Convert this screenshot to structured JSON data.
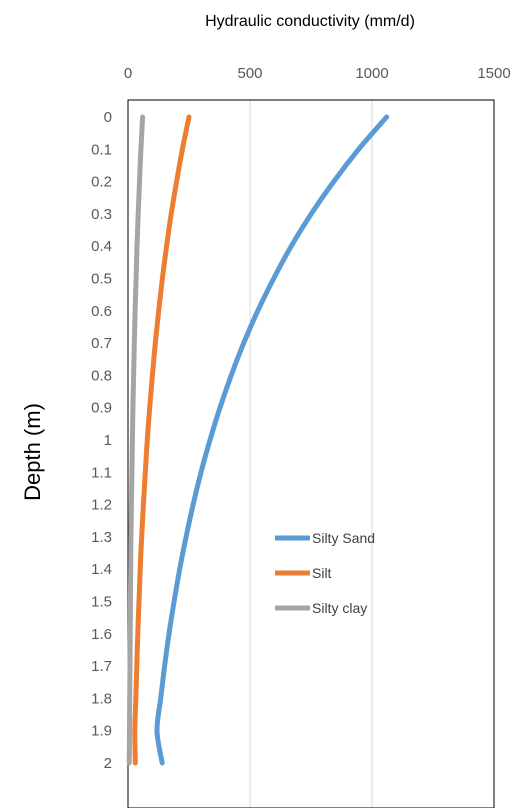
{
  "chart_data": {
    "type": "line",
    "title": "",
    "xlabel": "Hydraulic conductivity (mm/d)",
    "ylabel": "Depth (m)",
    "xlim": [
      0,
      1500
    ],
    "ylim": [
      0,
      2
    ],
    "x_axis_position": "top",
    "y_axis_reversed": true,
    "x_ticks": [
      "0",
      "500",
      "1000",
      "1500"
    ],
    "y_ticks": [
      "0",
      "0.1",
      "0.2",
      "0.3",
      "0.4",
      "0.5",
      "0.6",
      "0.7",
      "0.8",
      "0.9",
      "1",
      "1.1",
      "1.2",
      "1.3",
      "1.4",
      "1.5",
      "1.6",
      "1.7",
      "1.8",
      "1.9",
      "2"
    ],
    "grid": "vertical",
    "legend_position": "center-right",
    "depth": [
      0,
      0.1,
      0.2,
      0.3,
      0.4,
      0.5,
      0.6,
      0.7,
      0.8,
      0.9,
      1.0,
      1.1,
      1.2,
      1.3,
      1.4,
      1.5,
      1.6,
      1.7,
      1.8,
      1.9,
      2.0
    ],
    "series": [
      {
        "name": "Silty Sand",
        "color": "#5B9BD5",
        "values": [
          1060,
          945,
          843,
          751,
          669,
          597,
          532,
          474,
          423,
          377,
          336,
          299,
          267,
          238,
          212,
          189,
          168,
          150,
          134,
          119,
          140
        ]
      },
      {
        "name": "Silt",
        "color": "#ED7D31",
        "values": [
          250,
          223,
          199,
          177,
          158,
          141,
          126,
          112,
          100,
          89,
          79,
          71,
          63,
          56,
          50,
          45,
          40,
          36,
          32,
          28,
          30
        ]
      },
      {
        "name": "Silty clay",
        "color": "#A5A5A5",
        "values": [
          60,
          53,
          47,
          42,
          37,
          33,
          29,
          26,
          23,
          20,
          18,
          16,
          14,
          12,
          11,
          10,
          9,
          8,
          7,
          6,
          5
        ]
      }
    ]
  }
}
